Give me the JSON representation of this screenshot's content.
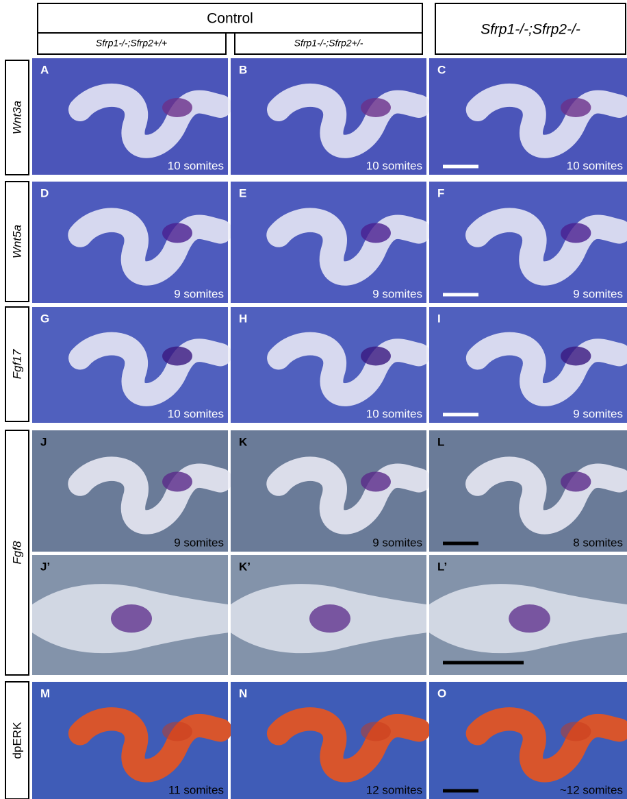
{
  "header": {
    "group": "Control",
    "columns": [
      "Sfrp1-/-;Sfrp2+/+",
      "Sfrp1-/-;Sfrp2+/-",
      "Sfrp1-/-;Sfrp2-/-"
    ]
  },
  "row_labels": [
    "Wnt3a",
    "Wnt5a",
    "Fgf17",
    "Fgf8",
    "dpERK"
  ],
  "panel_rows": [
    [
      {
        "letter": "A",
        "caption": "10 somites"
      },
      {
        "letter": "B",
        "caption": "10 somites"
      },
      {
        "letter": "C",
        "caption": "10 somites"
      }
    ],
    [
      {
        "letter": "D",
        "caption": "9 somites"
      },
      {
        "letter": "E",
        "caption": "9 somites"
      },
      {
        "letter": "F",
        "caption": "9 somites"
      }
    ],
    [
      {
        "letter": "G",
        "caption": "10 somites"
      },
      {
        "letter": "H",
        "caption": "10 somites"
      },
      {
        "letter": "I",
        "caption": "9 somites"
      }
    ],
    [
      {
        "letter": "J",
        "caption": "9 somites"
      },
      {
        "letter": "K",
        "caption": "9 somites"
      },
      {
        "letter": "L",
        "caption": "8 somites"
      }
    ],
    [
      {
        "letter": "J’"
      },
      {
        "letter": "K’"
      },
      {
        "letter": "L’"
      }
    ],
    [
      {
        "letter": "M",
        "caption": "11 somites"
      },
      {
        "letter": "N",
        "caption": "12 somites"
      },
      {
        "letter": "O",
        "caption": "~12 somites"
      }
    ]
  ]
}
